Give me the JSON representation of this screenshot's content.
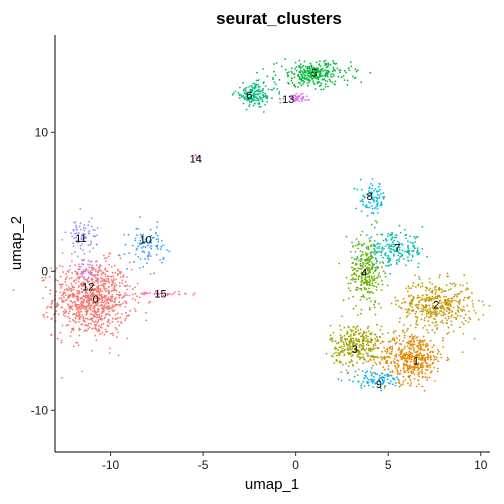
{
  "chart_data": {
    "type": "scatter",
    "title": "seurat_clusters",
    "xlabel": "umap_1",
    "ylabel": "umap_2",
    "xlim": [
      -13,
      10.5
    ],
    "ylim": [
      -13,
      17
    ],
    "xticks": [
      -10,
      -5,
      0,
      5,
      10
    ],
    "yticks": [
      -10,
      0,
      10
    ],
    "grid": false,
    "legend": "none",
    "clusters": [
      {
        "label": "0",
        "color": "#F8766D",
        "x": -11.0,
        "y": -2.0,
        "sx": 1.05,
        "sy": 1.35,
        "n": 900
      },
      {
        "label": "1",
        "color": "#E58700",
        "x": 6.3,
        "y": -6.2,
        "sx": 0.85,
        "sy": 0.9,
        "n": 450
      },
      {
        "label": "2",
        "color": "#C99800",
        "x": 7.6,
        "y": -2.4,
        "sx": 1.0,
        "sy": 0.85,
        "n": 420
      },
      {
        "label": "3",
        "color": "#A3A500",
        "x": 3.3,
        "y": -5.3,
        "sx": 0.7,
        "sy": 0.75,
        "n": 320
      },
      {
        "label": "4",
        "color": "#6BB100",
        "x": 3.8,
        "y": 0.0,
        "sx": 0.45,
        "sy": 1.2,
        "n": 280
      },
      {
        "label": "5",
        "color": "#00BA38",
        "x": 1.0,
        "y": 14.2,
        "sx": 1.0,
        "sy": 0.45,
        "n": 300
      },
      {
        "label": "6",
        "color": "#00BF7D",
        "x": -2.2,
        "y": 12.7,
        "sx": 0.55,
        "sy": 0.4,
        "n": 160
      },
      {
        "label": "7",
        "color": "#00C0AF",
        "x": 5.3,
        "y": 1.5,
        "sx": 0.85,
        "sy": 0.6,
        "n": 200
      },
      {
        "label": "8",
        "color": "#00BCD8",
        "x": 4.2,
        "y": 5.2,
        "sx": 0.35,
        "sy": 0.6,
        "n": 90
      },
      {
        "label": "9",
        "color": "#00B0F6",
        "x": 4.3,
        "y": -7.8,
        "sx": 0.8,
        "sy": 0.3,
        "n": 90
      },
      {
        "label": "10",
        "color": "#35A2FF",
        "x": -8.0,
        "y": 1.8,
        "sx": 0.45,
        "sy": 0.7,
        "n": 90
      },
      {
        "label": "11",
        "color": "#9590FF",
        "x": -11.5,
        "y": 2.5,
        "sx": 0.45,
        "sy": 0.75,
        "n": 80
      },
      {
        "label": "12",
        "color": "#C77CFF",
        "x": -11.2,
        "y": 0.0,
        "sx": 0.4,
        "sy": 0.3,
        "n": 30
      },
      {
        "label": "13",
        "color": "#E76BF3",
        "x": 0.0,
        "y": 12.5,
        "sx": 0.35,
        "sy": 0.15,
        "n": 45
      },
      {
        "label": "14",
        "color": "#FA62DB",
        "x": -5.2,
        "y": 8.2,
        "sx": 0.12,
        "sy": 0.1,
        "n": 10
      },
      {
        "label": "15",
        "color": "#FF62BC",
        "x": -7.3,
        "y": -1.6,
        "sx": 0.7,
        "sy": 0.08,
        "n": 35
      }
    ],
    "label_positions": [
      {
        "label": "0",
        "x": -10.8,
        "y": -2.0
      },
      {
        "label": "1",
        "x": 6.5,
        "y": -6.4
      },
      {
        "label": "2",
        "x": 7.6,
        "y": -2.4
      },
      {
        "label": "3",
        "x": 3.2,
        "y": -5.6
      },
      {
        "label": "4",
        "x": 3.7,
        "y": -0.1
      },
      {
        "label": "5",
        "x": 1.0,
        "y": 14.3
      },
      {
        "label": "6",
        "x": -2.5,
        "y": 12.7
      },
      {
        "label": "7",
        "x": 5.5,
        "y": 1.7
      },
      {
        "label": "8",
        "x": 4.0,
        "y": 5.4
      },
      {
        "label": "9",
        "x": 4.5,
        "y": -8.1
      },
      {
        "label": "10",
        "x": -8.1,
        "y": 2.3
      },
      {
        "label": "11",
        "x": -11.6,
        "y": 2.4
      },
      {
        "label": "12",
        "x": -11.2,
        "y": -1.1
      },
      {
        "label": "13",
        "x": -0.4,
        "y": 12.4
      },
      {
        "label": "14",
        "x": -5.4,
        "y": 8.1
      },
      {
        "label": "15",
        "x": -7.3,
        "y": -1.6
      }
    ]
  }
}
